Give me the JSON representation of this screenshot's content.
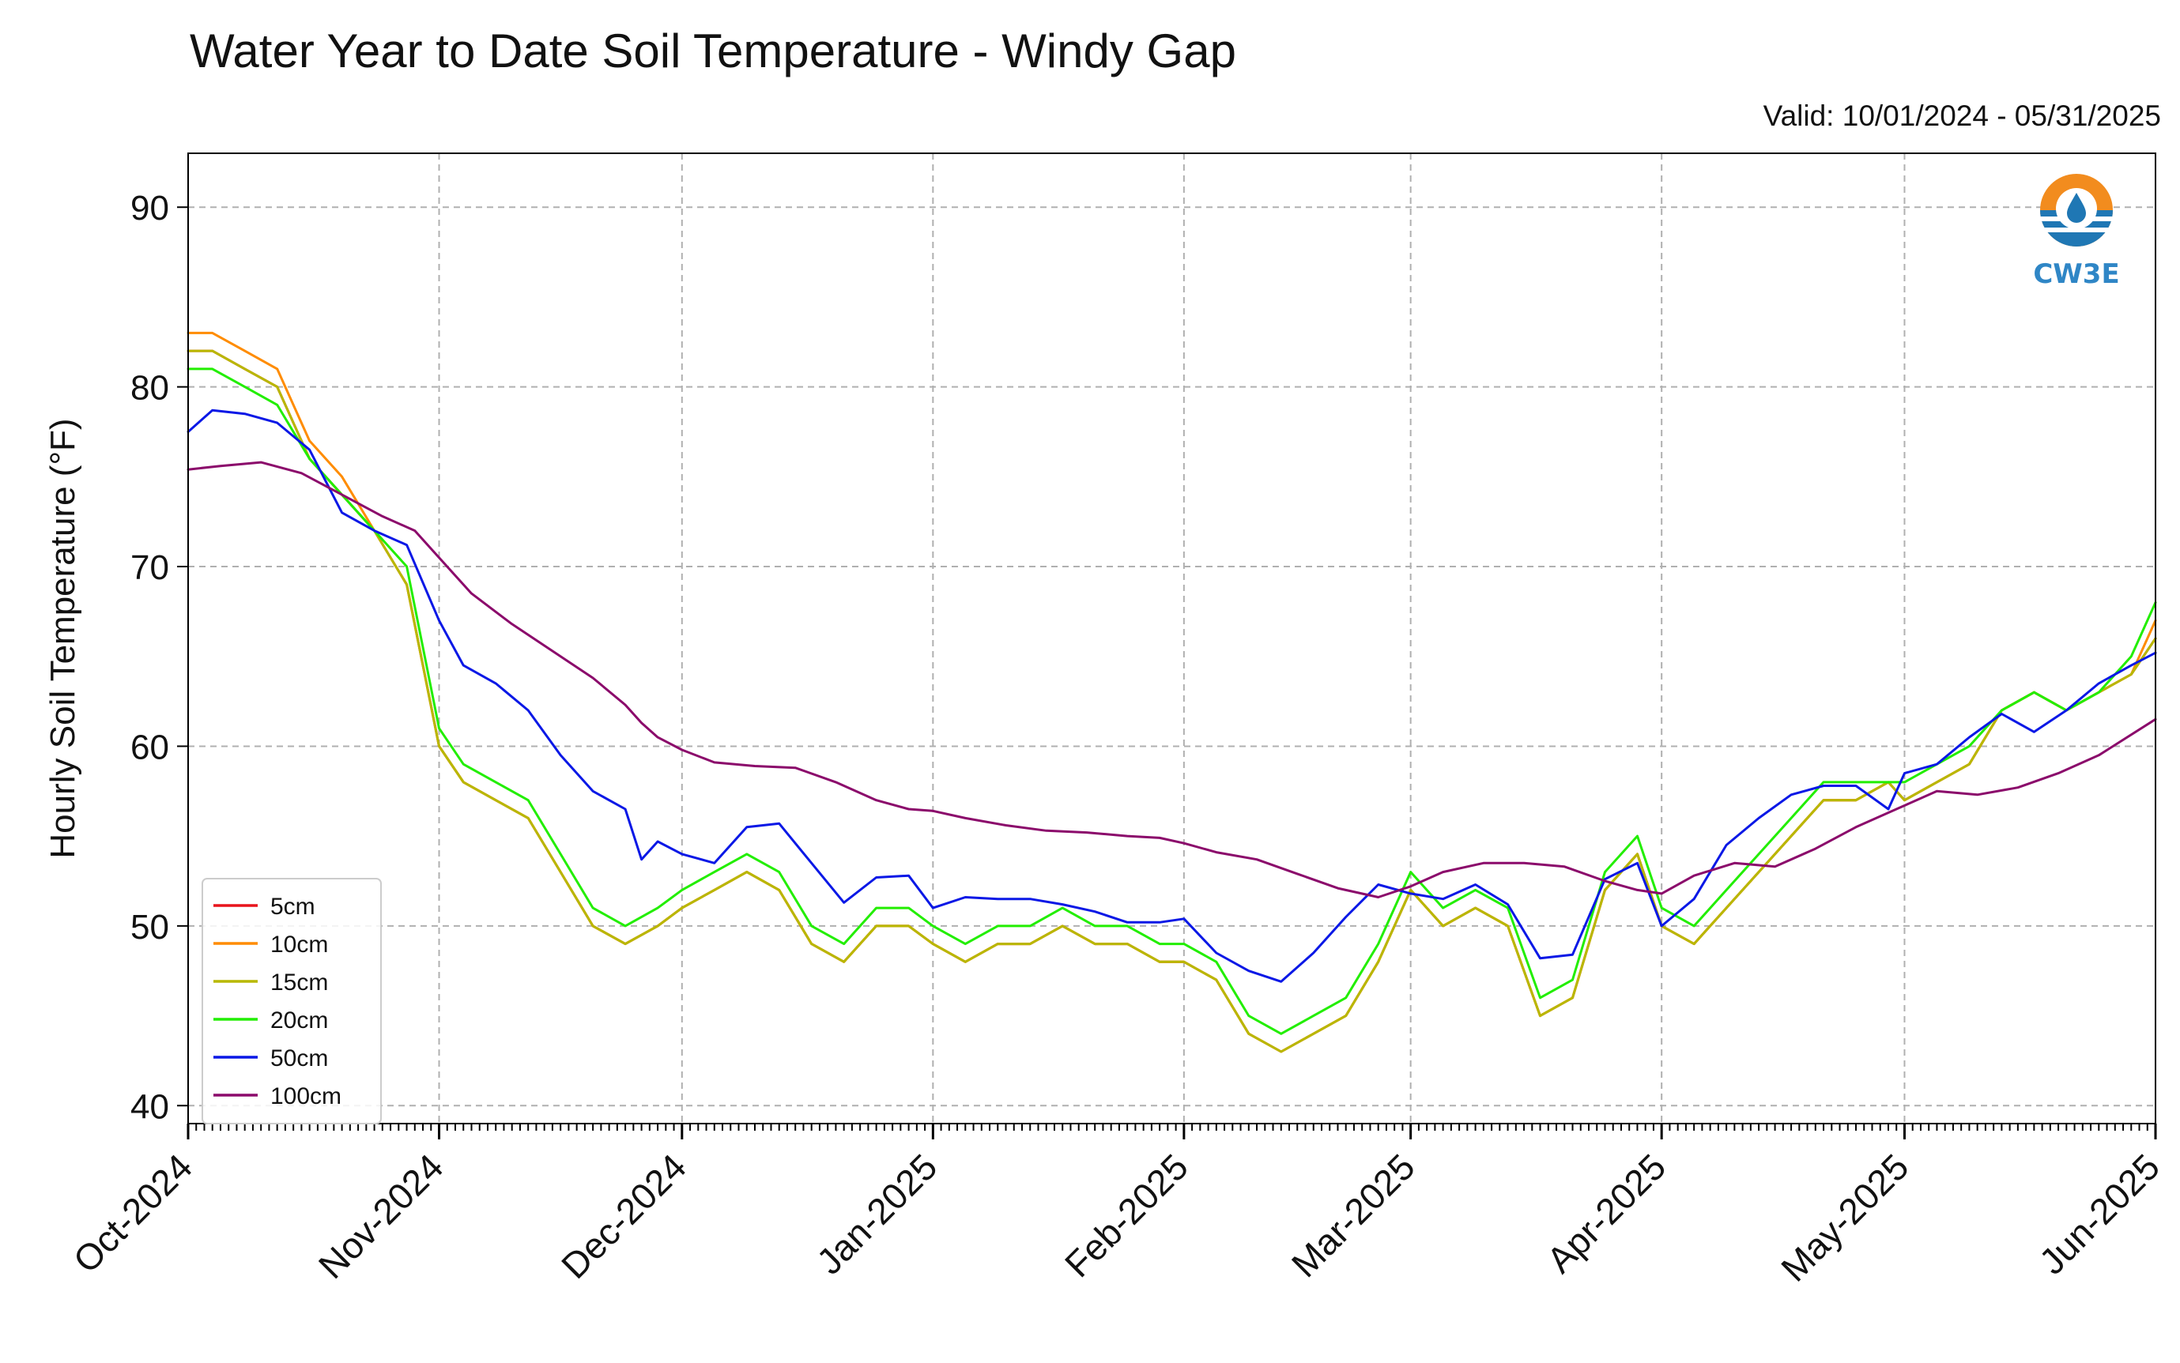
{
  "header": {
    "title": "Water Year to Date Soil Temperature - Windy Gap",
    "valid": "Valid: 10/01/2024 - 05/31/2025"
  },
  "logo": {
    "text": "CW3E",
    "icon": "water-drop-logo-icon"
  },
  "chart_data": {
    "type": "line",
    "title": "Water Year to Date Soil Temperature - Windy Gap",
    "subtitle": "Valid: 10/01/2024 - 05/31/2025",
    "ylabel": "Hourly Soil Temperature (°F)",
    "xlabel": "",
    "x_range": [
      "2024-10-01",
      "2025-06-01"
    ],
    "ylim": [
      39,
      93
    ],
    "y_ticks": [
      40,
      50,
      60,
      70,
      80,
      90
    ],
    "x_ticks": [
      {
        "date": "2024-10-01",
        "label": "Oct-2024"
      },
      {
        "date": "2024-11-01",
        "label": "Nov-2024"
      },
      {
        "date": "2024-12-01",
        "label": "Dec-2024"
      },
      {
        "date": "2025-01-01",
        "label": "Jan-2025"
      },
      {
        "date": "2025-02-01",
        "label": "Feb-2025"
      },
      {
        "date": "2025-03-01",
        "label": "Mar-2025"
      },
      {
        "date": "2025-04-01",
        "label": "Apr-2025"
      },
      {
        "date": "2025-05-01",
        "label": "May-2025"
      },
      {
        "date": "2025-06-01",
        "label": "Jun-2025"
      }
    ],
    "grid": true,
    "legend_position": "lower-left",
    "series": [
      {
        "name": "5cm",
        "color": "#e8141c",
        "x": [
          "2024-10-01",
          "2024-10-04",
          "2024-10-08",
          "2024-10-12",
          "2024-10-16",
          "2024-10-20",
          "2024-10-24",
          "2024-10-28",
          "2024-11-01",
          "2024-11-04",
          "2024-11-08",
          "2024-11-12",
          "2024-11-16",
          "2024-11-20",
          "2024-11-24",
          "2024-11-28",
          "2024-12-01",
          "2024-12-05",
          "2024-12-09",
          "2024-12-13",
          "2024-12-17",
          "2024-12-21",
          "2024-12-25",
          "2024-12-29",
          "2025-01-01",
          "2025-01-05",
          "2025-01-09",
          "2025-01-13",
          "2025-01-17",
          "2025-01-21",
          "2025-01-25",
          "2025-01-29",
          "2025-02-01",
          "2025-02-05",
          "2025-02-09",
          "2025-02-13",
          "2025-02-17",
          "2025-02-21",
          "2025-02-25",
          "2025-03-01",
          "2025-03-05",
          "2025-03-09",
          "2025-03-13",
          "2025-03-17",
          "2025-03-21",
          "2025-03-25",
          "2025-03-29",
          "2025-04-01",
          "2025-04-05",
          "2025-04-09",
          "2025-04-13",
          "2025-04-17",
          "2025-04-21",
          "2025-04-25",
          "2025-04-29",
          "2025-05-01",
          "2025-05-05",
          "2025-05-09",
          "2025-05-13",
          "2025-05-17",
          "2025-05-21",
          "2025-05-25",
          "2025-05-29",
          "2025-06-01"
        ],
        "y": [
          82,
          82,
          81,
          80,
          76,
          74,
          72,
          69,
          60,
          58,
          57,
          56,
          53,
          50,
          49,
          50,
          51,
          52,
          53,
          52,
          49,
          48,
          50,
          50,
          49,
          48,
          49,
          49,
          50,
          49,
          49,
          48,
          48,
          47,
          44,
          43,
          44,
          45,
          48,
          52,
          50,
          51,
          50,
          45,
          46,
          52,
          54,
          50,
          49,
          51,
          53,
          55,
          57,
          57,
          58,
          57,
          58,
          59,
          62,
          63,
          62,
          63,
          64,
          66
        ]
      },
      {
        "name": "10cm",
        "color": "#ff8c00",
        "x": [
          "2024-10-01",
          "2024-10-04",
          "2024-10-08",
          "2024-10-12",
          "2024-10-16",
          "2024-10-20",
          "2024-10-24",
          "2024-10-28",
          "2024-11-01",
          "2024-11-04",
          "2024-11-08",
          "2024-11-12",
          "2024-11-16",
          "2024-11-20",
          "2024-11-24",
          "2024-11-28",
          "2024-12-01",
          "2024-12-05",
          "2024-12-09",
          "2024-12-13",
          "2024-12-17",
          "2024-12-21",
          "2024-12-25",
          "2024-12-29",
          "2025-01-01",
          "2025-01-05",
          "2025-01-09",
          "2025-01-13",
          "2025-01-17",
          "2025-01-21",
          "2025-01-25",
          "2025-01-29",
          "2025-02-01",
          "2025-02-05",
          "2025-02-09",
          "2025-02-13",
          "2025-02-17",
          "2025-02-21",
          "2025-02-25",
          "2025-03-01",
          "2025-03-05",
          "2025-03-09",
          "2025-03-13",
          "2025-03-17",
          "2025-03-21",
          "2025-03-25",
          "2025-03-29",
          "2025-04-01",
          "2025-04-05",
          "2025-04-09",
          "2025-04-13",
          "2025-04-17",
          "2025-04-21",
          "2025-04-25",
          "2025-04-29",
          "2025-05-01",
          "2025-05-05",
          "2025-05-09",
          "2025-05-13",
          "2025-05-17",
          "2025-05-21",
          "2025-05-25",
          "2025-05-29",
          "2025-06-01"
        ],
        "y": [
          83,
          83,
          82,
          81,
          77,
          75,
          72,
          69,
          60,
          58,
          57,
          56,
          53,
          50,
          49,
          50,
          51,
          52,
          53,
          52,
          49,
          48,
          50,
          50,
          49,
          48,
          49,
          49,
          50,
          49,
          49,
          48,
          48,
          47,
          44,
          43,
          44,
          45,
          48,
          52,
          50,
          51,
          50,
          45,
          46,
          52,
          54,
          50,
          49,
          51,
          53,
          55,
          57,
          57,
          58,
          57,
          58,
          59,
          62,
          63,
          62,
          63,
          64,
          67
        ]
      },
      {
        "name": "15cm",
        "color": "#b8b800",
        "x": [
          "2024-10-01",
          "2024-10-04",
          "2024-10-08",
          "2024-10-12",
          "2024-10-16",
          "2024-10-20",
          "2024-10-24",
          "2024-10-28",
          "2024-11-01",
          "2024-11-04",
          "2024-11-08",
          "2024-11-12",
          "2024-11-16",
          "2024-11-20",
          "2024-11-24",
          "2024-11-28",
          "2024-12-01",
          "2024-12-05",
          "2024-12-09",
          "2024-12-13",
          "2024-12-17",
          "2024-12-21",
          "2024-12-25",
          "2024-12-29",
          "2025-01-01",
          "2025-01-05",
          "2025-01-09",
          "2025-01-13",
          "2025-01-17",
          "2025-01-21",
          "2025-01-25",
          "2025-01-29",
          "2025-02-01",
          "2025-02-05",
          "2025-02-09",
          "2025-02-13",
          "2025-02-17",
          "2025-02-21",
          "2025-02-25",
          "2025-03-01",
          "2025-03-05",
          "2025-03-09",
          "2025-03-13",
          "2025-03-17",
          "2025-03-21",
          "2025-03-25",
          "2025-03-29",
          "2025-04-01",
          "2025-04-05",
          "2025-04-09",
          "2025-04-13",
          "2025-04-17",
          "2025-04-21",
          "2025-04-25",
          "2025-04-29",
          "2025-05-01",
          "2025-05-05",
          "2025-05-09",
          "2025-05-13",
          "2025-05-17",
          "2025-05-21",
          "2025-05-25",
          "2025-05-29",
          "2025-06-01"
        ],
        "y": [
          82,
          82,
          81,
          80,
          76,
          74,
          72,
          69,
          60,
          58,
          57,
          56,
          53,
          50,
          49,
          50,
          51,
          52,
          53,
          52,
          49,
          48,
          50,
          50,
          49,
          48,
          49,
          49,
          50,
          49,
          49,
          48,
          48,
          47,
          44,
          43,
          44,
          45,
          48,
          52,
          50,
          51,
          50,
          45,
          46,
          52,
          54,
          50,
          49,
          51,
          53,
          55,
          57,
          57,
          58,
          57,
          58,
          59,
          62,
          63,
          62,
          63,
          64,
          66
        ]
      },
      {
        "name": "20cm",
        "color": "#22ee00",
        "x": [
          "2024-10-01",
          "2024-10-04",
          "2024-10-08",
          "2024-10-12",
          "2024-10-16",
          "2024-10-20",
          "2024-10-24",
          "2024-10-28",
          "2024-11-01",
          "2024-11-04",
          "2024-11-08",
          "2024-11-12",
          "2024-11-16",
          "2024-11-20",
          "2024-11-24",
          "2024-11-28",
          "2024-12-01",
          "2024-12-05",
          "2024-12-09",
          "2024-12-13",
          "2024-12-17",
          "2024-12-21",
          "2024-12-25",
          "2024-12-29",
          "2025-01-01",
          "2025-01-05",
          "2025-01-09",
          "2025-01-13",
          "2025-01-17",
          "2025-01-21",
          "2025-01-25",
          "2025-01-29",
          "2025-02-01",
          "2025-02-05",
          "2025-02-09",
          "2025-02-13",
          "2025-02-17",
          "2025-02-21",
          "2025-02-25",
          "2025-03-01",
          "2025-03-05",
          "2025-03-09",
          "2025-03-13",
          "2025-03-17",
          "2025-03-21",
          "2025-03-25",
          "2025-03-29",
          "2025-04-01",
          "2025-04-05",
          "2025-04-09",
          "2025-04-13",
          "2025-04-17",
          "2025-04-21",
          "2025-04-25",
          "2025-04-29",
          "2025-05-01",
          "2025-05-05",
          "2025-05-09",
          "2025-05-13",
          "2025-05-17",
          "2025-05-21",
          "2025-05-25",
          "2025-05-29",
          "2025-06-01"
        ],
        "y": [
          81,
          81,
          80,
          79,
          76,
          74,
          72,
          70,
          61,
          59,
          58,
          57,
          54,
          51,
          50,
          51,
          52,
          53,
          54,
          53,
          50,
          49,
          51,
          51,
          50,
          49,
          50,
          50,
          51,
          50,
          50,
          49,
          49,
          48,
          45,
          44,
          45,
          46,
          49,
          53,
          51,
          52,
          51,
          46,
          47,
          53,
          55,
          51,
          50,
          52,
          54,
          56,
          58,
          58,
          58,
          58,
          59,
          60,
          62,
          63,
          62,
          63,
          65,
          68
        ]
      },
      {
        "name": "50cm",
        "color": "#0a18e6",
        "x": [
          "2024-10-01",
          "2024-10-04",
          "2024-10-08",
          "2024-10-12",
          "2024-10-16",
          "2024-10-20",
          "2024-10-24",
          "2024-10-28",
          "2024-11-01",
          "2024-11-04",
          "2024-11-08",
          "2024-11-12",
          "2024-11-16",
          "2024-11-20",
          "2024-11-24",
          "2024-11-26",
          "2024-11-28",
          "2024-12-01",
          "2024-12-05",
          "2024-12-09",
          "2024-12-13",
          "2024-12-17",
          "2024-12-21",
          "2024-12-25",
          "2024-12-29",
          "2025-01-01",
          "2025-01-05",
          "2025-01-09",
          "2025-01-13",
          "2025-01-17",
          "2025-01-21",
          "2025-01-25",
          "2025-01-29",
          "2025-02-01",
          "2025-02-05",
          "2025-02-09",
          "2025-02-13",
          "2025-02-17",
          "2025-02-21",
          "2025-02-25",
          "2025-03-01",
          "2025-03-05",
          "2025-03-09",
          "2025-03-13",
          "2025-03-17",
          "2025-03-21",
          "2025-03-25",
          "2025-03-29",
          "2025-04-01",
          "2025-04-05",
          "2025-04-09",
          "2025-04-13",
          "2025-04-17",
          "2025-04-21",
          "2025-04-25",
          "2025-04-29",
          "2025-05-01",
          "2025-05-05",
          "2025-05-09",
          "2025-05-13",
          "2025-05-17",
          "2025-05-21",
          "2025-05-25",
          "2025-05-29",
          "2025-06-01"
        ],
        "y": [
          77.5,
          78.7,
          78.5,
          78,
          76.5,
          73,
          72,
          71.2,
          67,
          64.5,
          63.5,
          62,
          59.5,
          57.5,
          56.5,
          53.7,
          54.7,
          54,
          53.5,
          55.5,
          55.7,
          53.5,
          51.3,
          52.7,
          52.8,
          51,
          51.6,
          51.5,
          51.5,
          51.2,
          50.8,
          50.2,
          50.2,
          50.4,
          48.5,
          47.5,
          46.9,
          48.5,
          50.5,
          52.3,
          51.8,
          51.5,
          52.3,
          51.2,
          48.2,
          48.4,
          52.6,
          53.5,
          50,
          51.5,
          54.5,
          56,
          57.3,
          57.8,
          57.8,
          56.5,
          58.5,
          59,
          60.5,
          61.8,
          60.8,
          62,
          63.5,
          64.5,
          65.2
        ]
      },
      {
        "name": "100cm",
        "color": "#8b0a6b",
        "x": [
          "2024-10-01",
          "2024-10-05",
          "2024-10-10",
          "2024-10-15",
          "2024-10-20",
          "2024-10-25",
          "2024-10-29",
          "2024-11-01",
          "2024-11-05",
          "2024-11-10",
          "2024-11-15",
          "2024-11-20",
          "2024-11-24",
          "2024-11-26",
          "2024-11-28",
          "2024-12-01",
          "2024-12-05",
          "2024-12-10",
          "2024-12-15",
          "2024-12-20",
          "2024-12-25",
          "2024-12-29",
          "2025-01-01",
          "2025-01-05",
          "2025-01-10",
          "2025-01-15",
          "2025-01-20",
          "2025-01-25",
          "2025-01-29",
          "2025-02-01",
          "2025-02-05",
          "2025-02-10",
          "2025-02-15",
          "2025-02-20",
          "2025-02-25",
          "2025-03-01",
          "2025-03-05",
          "2025-03-10",
          "2025-03-15",
          "2025-03-20",
          "2025-03-25",
          "2025-03-29",
          "2025-04-01",
          "2025-04-05",
          "2025-04-10",
          "2025-04-15",
          "2025-04-20",
          "2025-04-25",
          "2025-04-30",
          "2025-05-05",
          "2025-05-10",
          "2025-05-15",
          "2025-05-20",
          "2025-05-25",
          "2025-06-01"
        ],
        "y": [
          75.4,
          75.6,
          75.8,
          75.2,
          74,
          72.8,
          72,
          70.5,
          68.5,
          66.8,
          65.3,
          63.8,
          62.3,
          61.3,
          60.5,
          59.8,
          59.1,
          58.9,
          58.8,
          58,
          57,
          56.5,
          56.4,
          56,
          55.6,
          55.3,
          55.2,
          55,
          54.9,
          54.6,
          54.1,
          53.7,
          52.9,
          52.1,
          51.6,
          52.2,
          53,
          53.5,
          53.5,
          53.3,
          52.5,
          52,
          51.8,
          52.8,
          53.5,
          53.3,
          54.3,
          55.5,
          56.5,
          57.5,
          57.3,
          57.7,
          58.5,
          59.5,
          61.5
        ]
      }
    ]
  }
}
